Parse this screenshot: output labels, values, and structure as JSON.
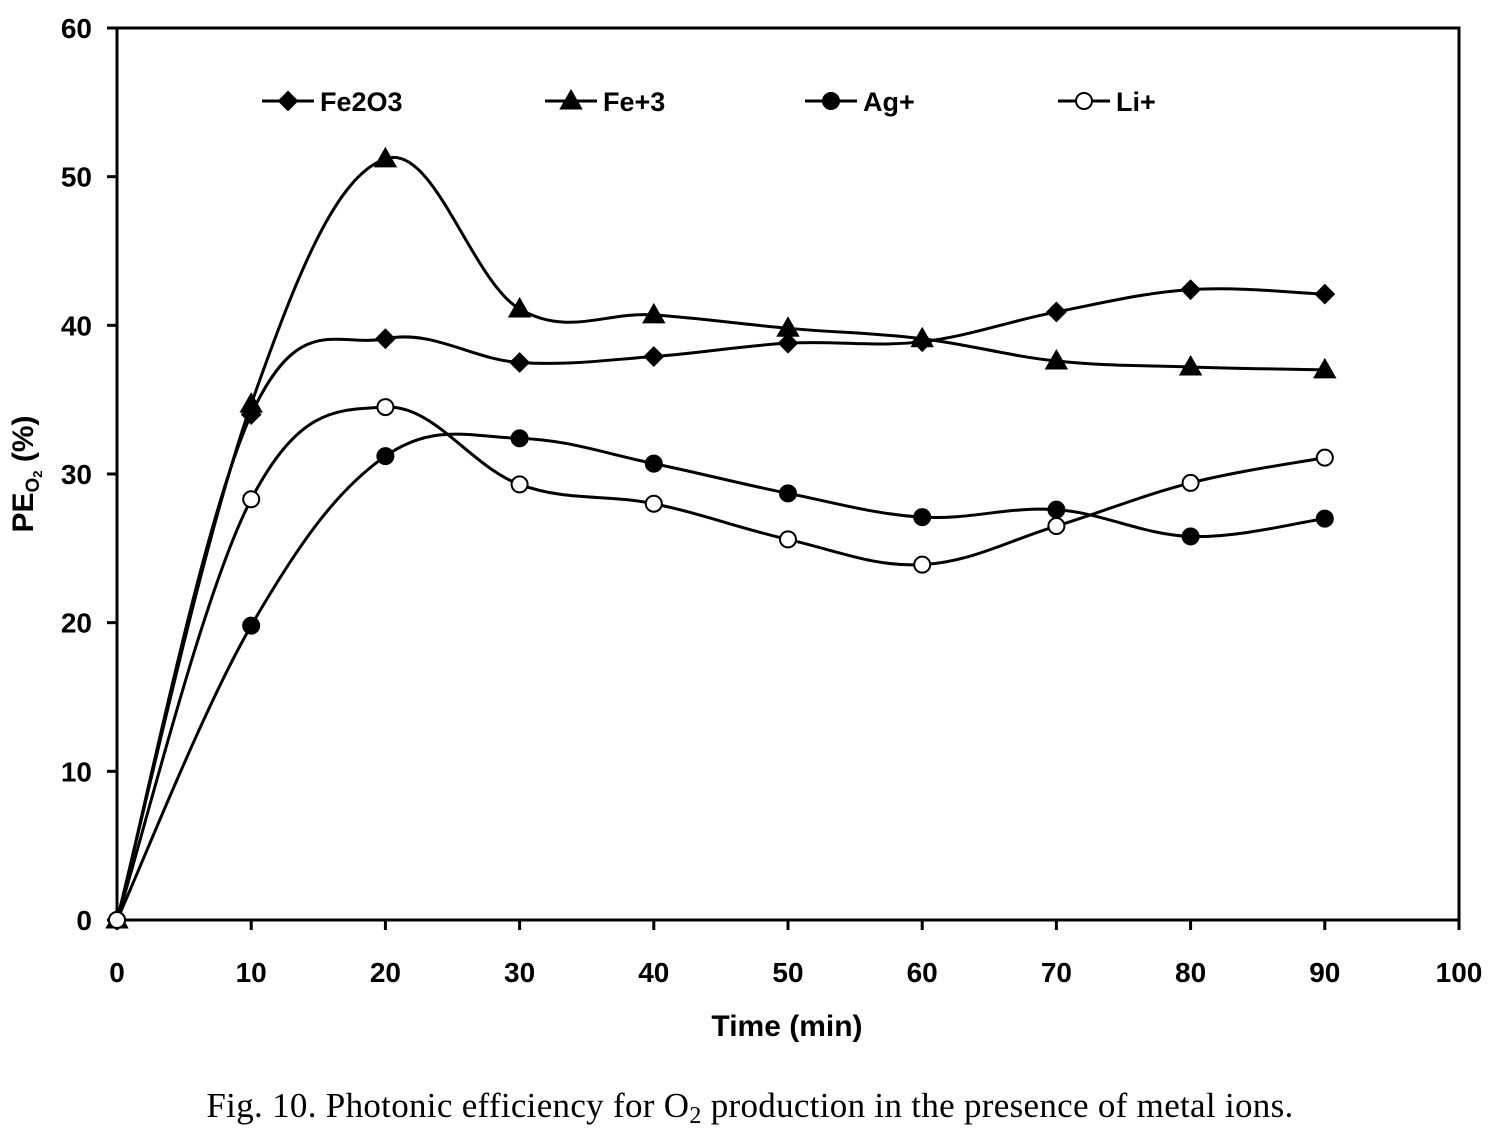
{
  "chart_data": {
    "type": "line",
    "title": "",
    "xlabel": "Time (min)",
    "ylabel": {
      "base": "PE",
      "sub_main": "O",
      "sub_index": "2",
      "suffix": " (%)"
    },
    "xlim": [
      0,
      100
    ],
    "ylim": [
      0,
      60
    ],
    "x_ticks": [
      0,
      10,
      20,
      30,
      40,
      50,
      60,
      70,
      80,
      90,
      100
    ],
    "y_ticks": [
      0,
      10,
      20,
      30,
      40,
      50,
      60
    ],
    "grid": false,
    "legend_position": "top",
    "x": [
      0,
      10,
      20,
      30,
      40,
      50,
      60,
      70,
      80,
      90
    ],
    "series": [
      {
        "name": "Fe2O3",
        "marker": "diamond",
        "fill": "#000000",
        "values": [
          0,
          34.0,
          39.1,
          37.5,
          37.9,
          38.8,
          38.9,
          40.9,
          42.4,
          42.1
        ]
      },
      {
        "name": "Fe+3",
        "marker": "triangle",
        "fill": "#000000",
        "values": [
          0,
          34.7,
          51.2,
          41.1,
          40.7,
          39.8,
          39.1,
          37.6,
          37.2,
          37.0
        ]
      },
      {
        "name": "Ag+",
        "marker": "circle",
        "fill": "#000000",
        "values": [
          0,
          19.8,
          31.2,
          32.4,
          30.7,
          28.7,
          27.1,
          27.6,
          25.8,
          27.0
        ]
      },
      {
        "name": "Li+",
        "marker": "circle-open",
        "fill": "#ffffff",
        "values": [
          0,
          28.3,
          34.5,
          29.3,
          28.0,
          25.6,
          23.9,
          26.5,
          29.4,
          31.1
        ]
      }
    ]
  },
  "caption": {
    "prefix": "Fig. 10. Photonic efficiency for O",
    "sub": "2",
    "suffix": " production in the presence of metal ions."
  }
}
